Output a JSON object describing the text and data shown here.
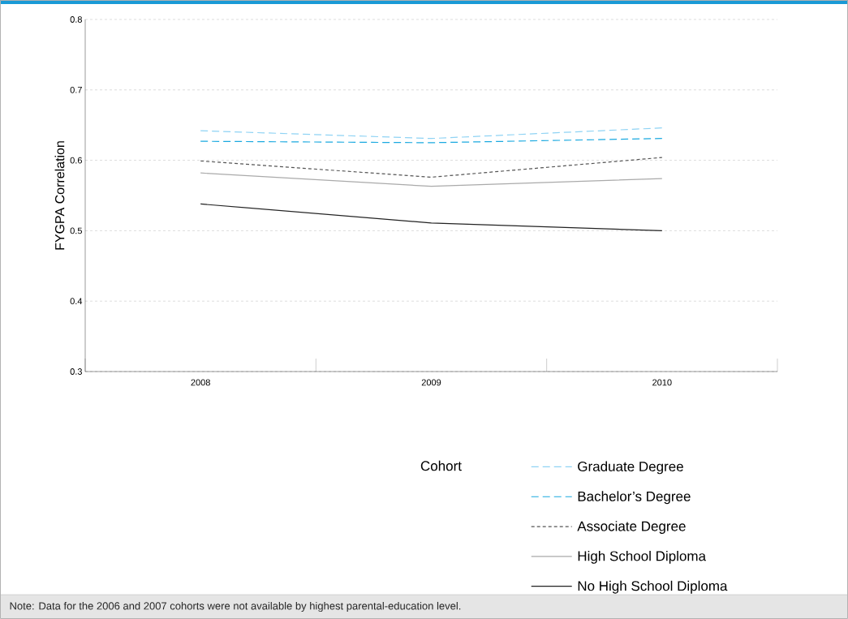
{
  "chart_data": {
    "type": "line",
    "ylabel": "FYGPA Correlation",
    "legend_title": "Cohort",
    "categories": [
      "2008",
      "2009",
      "2010"
    ],
    "series": [
      {
        "name": "Graduate Degree",
        "color": "#8fd3f4",
        "line_style": "dashed",
        "values": [
          0.642,
          0.631,
          0.646
        ]
      },
      {
        "name": "Bachelor’s Degree",
        "color": "#1aa9e0",
        "line_style": "dashed",
        "values": [
          0.627,
          0.625,
          0.631
        ]
      },
      {
        "name": "Associate Degree",
        "color": "#555555",
        "line_style": "dotted",
        "values": [
          0.599,
          0.576,
          0.604
        ]
      },
      {
        "name": "High School Diploma",
        "color": "#aaaaaa",
        "line_style": "solid",
        "values": [
          0.582,
          0.563,
          0.574
        ]
      },
      {
        "name": "No High School Diploma",
        "color": "#222222",
        "line_style": "solid",
        "values": [
          0.538,
          0.511,
          0.5
        ]
      }
    ],
    "ylim": [
      0.3,
      0.8
    ],
    "yticks": [
      0.3,
      0.4,
      0.5,
      0.6,
      0.7,
      0.8
    ],
    "grid": "y",
    "legend": "bottom",
    "annotations": [
      "Note: Data for the 2006 and 2007 cohorts were not available by highest parental-education level."
    ]
  }
}
